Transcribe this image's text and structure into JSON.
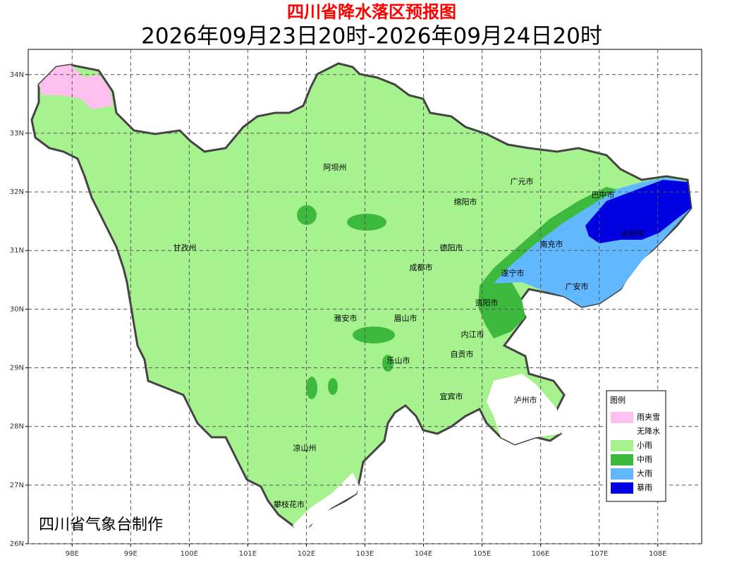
{
  "header": {
    "title": "四川省降水落区预报图",
    "subtitle": "2026年09月23日20时-2026年09月24日20时"
  },
  "map": {
    "xlim": [
      97.25,
      108.75
    ],
    "ylim": [
      26,
      34.43
    ],
    "xticks": [
      {
        "value": 98,
        "label": "98E"
      },
      {
        "value": 99,
        "label": "99E"
      },
      {
        "value": 100,
        "label": "100E"
      },
      {
        "value": 101,
        "label": "101E"
      },
      {
        "value": 102,
        "label": "102E"
      },
      {
        "value": 103,
        "label": "103E"
      },
      {
        "value": 104,
        "label": "104E"
      },
      {
        "value": 105,
        "label": "105E"
      },
      {
        "value": 106,
        "label": "106E"
      },
      {
        "value": 107,
        "label": "107E"
      },
      {
        "value": 108,
        "label": "108E"
      }
    ],
    "yticks": [
      {
        "value": 26,
        "label": "26N"
      },
      {
        "value": 27,
        "label": "27N"
      },
      {
        "value": 28,
        "label": "28N"
      },
      {
        "value": 29,
        "label": "29N"
      },
      {
        "value": 30,
        "label": "30N"
      },
      {
        "value": 31,
        "label": "31N"
      },
      {
        "value": 32,
        "label": "32N"
      },
      {
        "value": 33,
        "label": "33N"
      },
      {
        "value": 34,
        "label": "34N"
      }
    ],
    "grid": true,
    "regions": [
      "阿坝州",
      "广元市",
      "巴中市",
      "绵阳市",
      "达州市",
      "甘孜州",
      "德阳市",
      "南充市",
      "成都市",
      "遂宁市",
      "广安市",
      "资阳市",
      "雅安市",
      "眉山市",
      "内江市",
      "自贡市",
      "乐山市",
      "宜宾市",
      "泸州市",
      "凉山州",
      "攀枝花市"
    ]
  },
  "legend": {
    "title": "图例",
    "items": [
      {
        "name": "雨夹雪",
        "color": "#ffc0f0"
      },
      {
        "name": "无降水",
        "color": "#ffffff"
      },
      {
        "name": "小雨",
        "color": "#a6f28f"
      },
      {
        "name": "中雨",
        "color": "#3dba3d"
      },
      {
        "name": "大雨",
        "color": "#61b8ff"
      },
      {
        "name": "暴雨",
        "color": "#0000e0"
      }
    ]
  },
  "credit": "四川省气象台制作"
}
